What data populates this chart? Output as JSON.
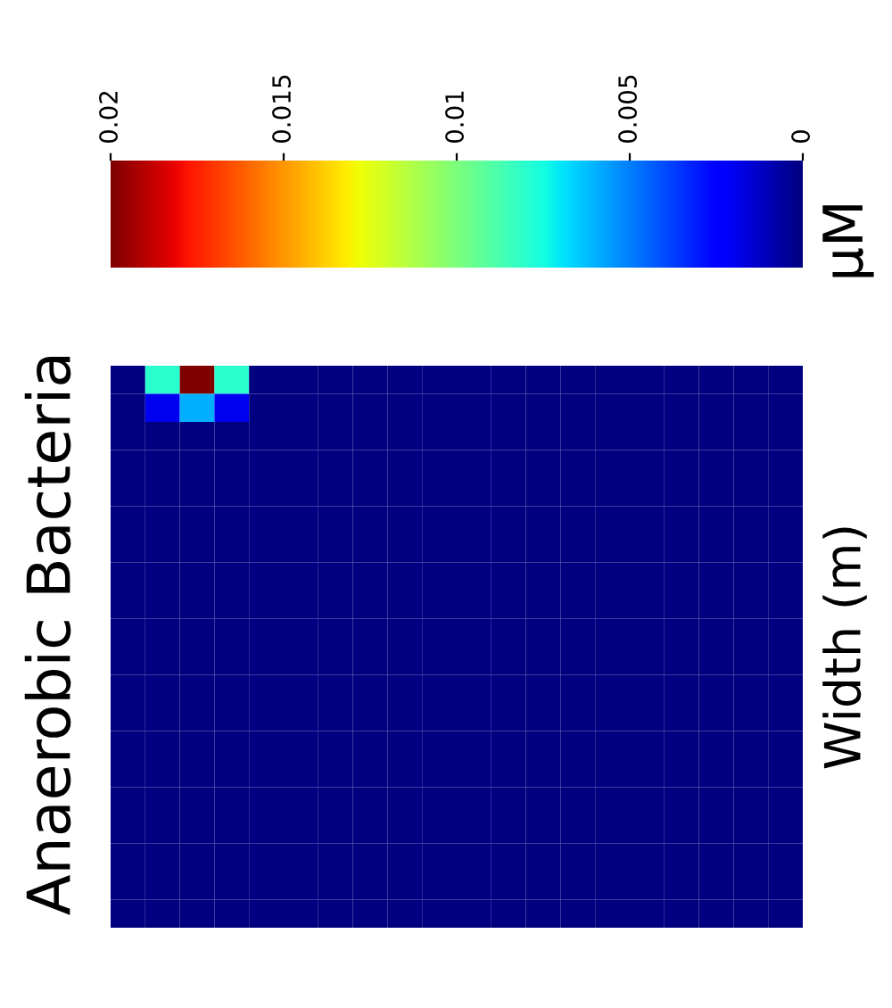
{
  "chart_data": {
    "type": "heatmap",
    "title": "Anaerobic Bacteria",
    "ylabel": "Width (m)",
    "clabel": "μM",
    "categories": [
      null,
      null,
      null,
      null,
      null,
      null,
      null,
      null,
      null,
      null,
      null,
      null,
      null,
      null,
      null,
      null,
      null,
      null,
      null,
      null
    ],
    "y_categories": [
      null,
      null,
      null,
      null,
      null,
      null,
      null,
      null,
      null,
      null,
      null,
      null,
      null,
      null,
      null,
      null,
      null,
      null,
      null,
      null
    ],
    "cells": [
      [
        0,
        0.008,
        0.02,
        0.008,
        0,
        0,
        0,
        0,
        0,
        0,
        0,
        0,
        0,
        0,
        0,
        0,
        0,
        0,
        0,
        0
      ],
      [
        0,
        0.002,
        0.006,
        0.002,
        0,
        0,
        0,
        0,
        0,
        0,
        0,
        0,
        0,
        0,
        0,
        0,
        0,
        0,
        0,
        0
      ],
      [
        0,
        0,
        0,
        0,
        0,
        0,
        0,
        0,
        0,
        0,
        0,
        0,
        0,
        0,
        0,
        0,
        0,
        0,
        0,
        0
      ],
      [
        0,
        0,
        0,
        0,
        0,
        0,
        0,
        0,
        0,
        0,
        0,
        0,
        0,
        0,
        0,
        0,
        0,
        0,
        0,
        0
      ],
      [
        0,
        0,
        0,
        0,
        0,
        0,
        0,
        0,
        0,
        0,
        0,
        0,
        0,
        0,
        0,
        0,
        0,
        0,
        0,
        0
      ],
      [
        0,
        0,
        0,
        0,
        0,
        0,
        0,
        0,
        0,
        0,
        0,
        0,
        0,
        0,
        0,
        0,
        0,
        0,
        0,
        0
      ],
      [
        0,
        0,
        0,
        0,
        0,
        0,
        0,
        0,
        0,
        0,
        0,
        0,
        0,
        0,
        0,
        0,
        0,
        0,
        0,
        0
      ],
      [
        0,
        0,
        0,
        0,
        0,
        0,
        0,
        0,
        0,
        0,
        0,
        0,
        0,
        0,
        0,
        0,
        0,
        0,
        0,
        0
      ],
      [
        0,
        0,
        0,
        0,
        0,
        0,
        0,
        0,
        0,
        0,
        0,
        0,
        0,
        0,
        0,
        0,
        0,
        0,
        0,
        0
      ],
      [
        0,
        0,
        0,
        0,
        0,
        0,
        0,
        0,
        0,
        0,
        0,
        0,
        0,
        0,
        0,
        0,
        0,
        0,
        0,
        0
      ],
      [
        0,
        0,
        0,
        0,
        0,
        0,
        0,
        0,
        0,
        0,
        0,
        0,
        0,
        0,
        0,
        0,
        0,
        0,
        0,
        0
      ],
      [
        0,
        0,
        0,
        0,
        0,
        0,
        0,
        0,
        0,
        0,
        0,
        0,
        0,
        0,
        0,
        0,
        0,
        0,
        0,
        0
      ],
      [
        0,
        0,
        0,
        0,
        0,
        0,
        0,
        0,
        0,
        0,
        0,
        0,
        0,
        0,
        0,
        0,
        0,
        0,
        0,
        0
      ],
      [
        0,
        0,
        0,
        0,
        0,
        0,
        0,
        0,
        0,
        0,
        0,
        0,
        0,
        0,
        0,
        0,
        0,
        0,
        0,
        0
      ],
      [
        0,
        0,
        0,
        0,
        0,
        0,
        0,
        0,
        0,
        0,
        0,
        0,
        0,
        0,
        0,
        0,
        0,
        0,
        0,
        0
      ],
      [
        0,
        0,
        0,
        0,
        0,
        0,
        0,
        0,
        0,
        0,
        0,
        0,
        0,
        0,
        0,
        0,
        0,
        0,
        0,
        0
      ],
      [
        0,
        0,
        0,
        0,
        0,
        0,
        0,
        0,
        0,
        0,
        0,
        0,
        0,
        0,
        0,
        0,
        0,
        0,
        0,
        0
      ],
      [
        0,
        0,
        0,
        0,
        0,
        0,
        0,
        0,
        0,
        0,
        0,
        0,
        0,
        0,
        0,
        0,
        0,
        0,
        0,
        0
      ],
      [
        0,
        0,
        0,
        0,
        0,
        0,
        0,
        0,
        0,
        0,
        0,
        0,
        0,
        0,
        0,
        0,
        0,
        0,
        0,
        0
      ],
      [
        0,
        0,
        0,
        0,
        0,
        0,
        0,
        0,
        0,
        0,
        0,
        0,
        0,
        0,
        0,
        0,
        0,
        0,
        0,
        0
      ]
    ],
    "clim": [
      0,
      0.02
    ],
    "cticks": [
      0.02,
      0.015,
      0.01,
      0.005,
      0
    ]
  }
}
